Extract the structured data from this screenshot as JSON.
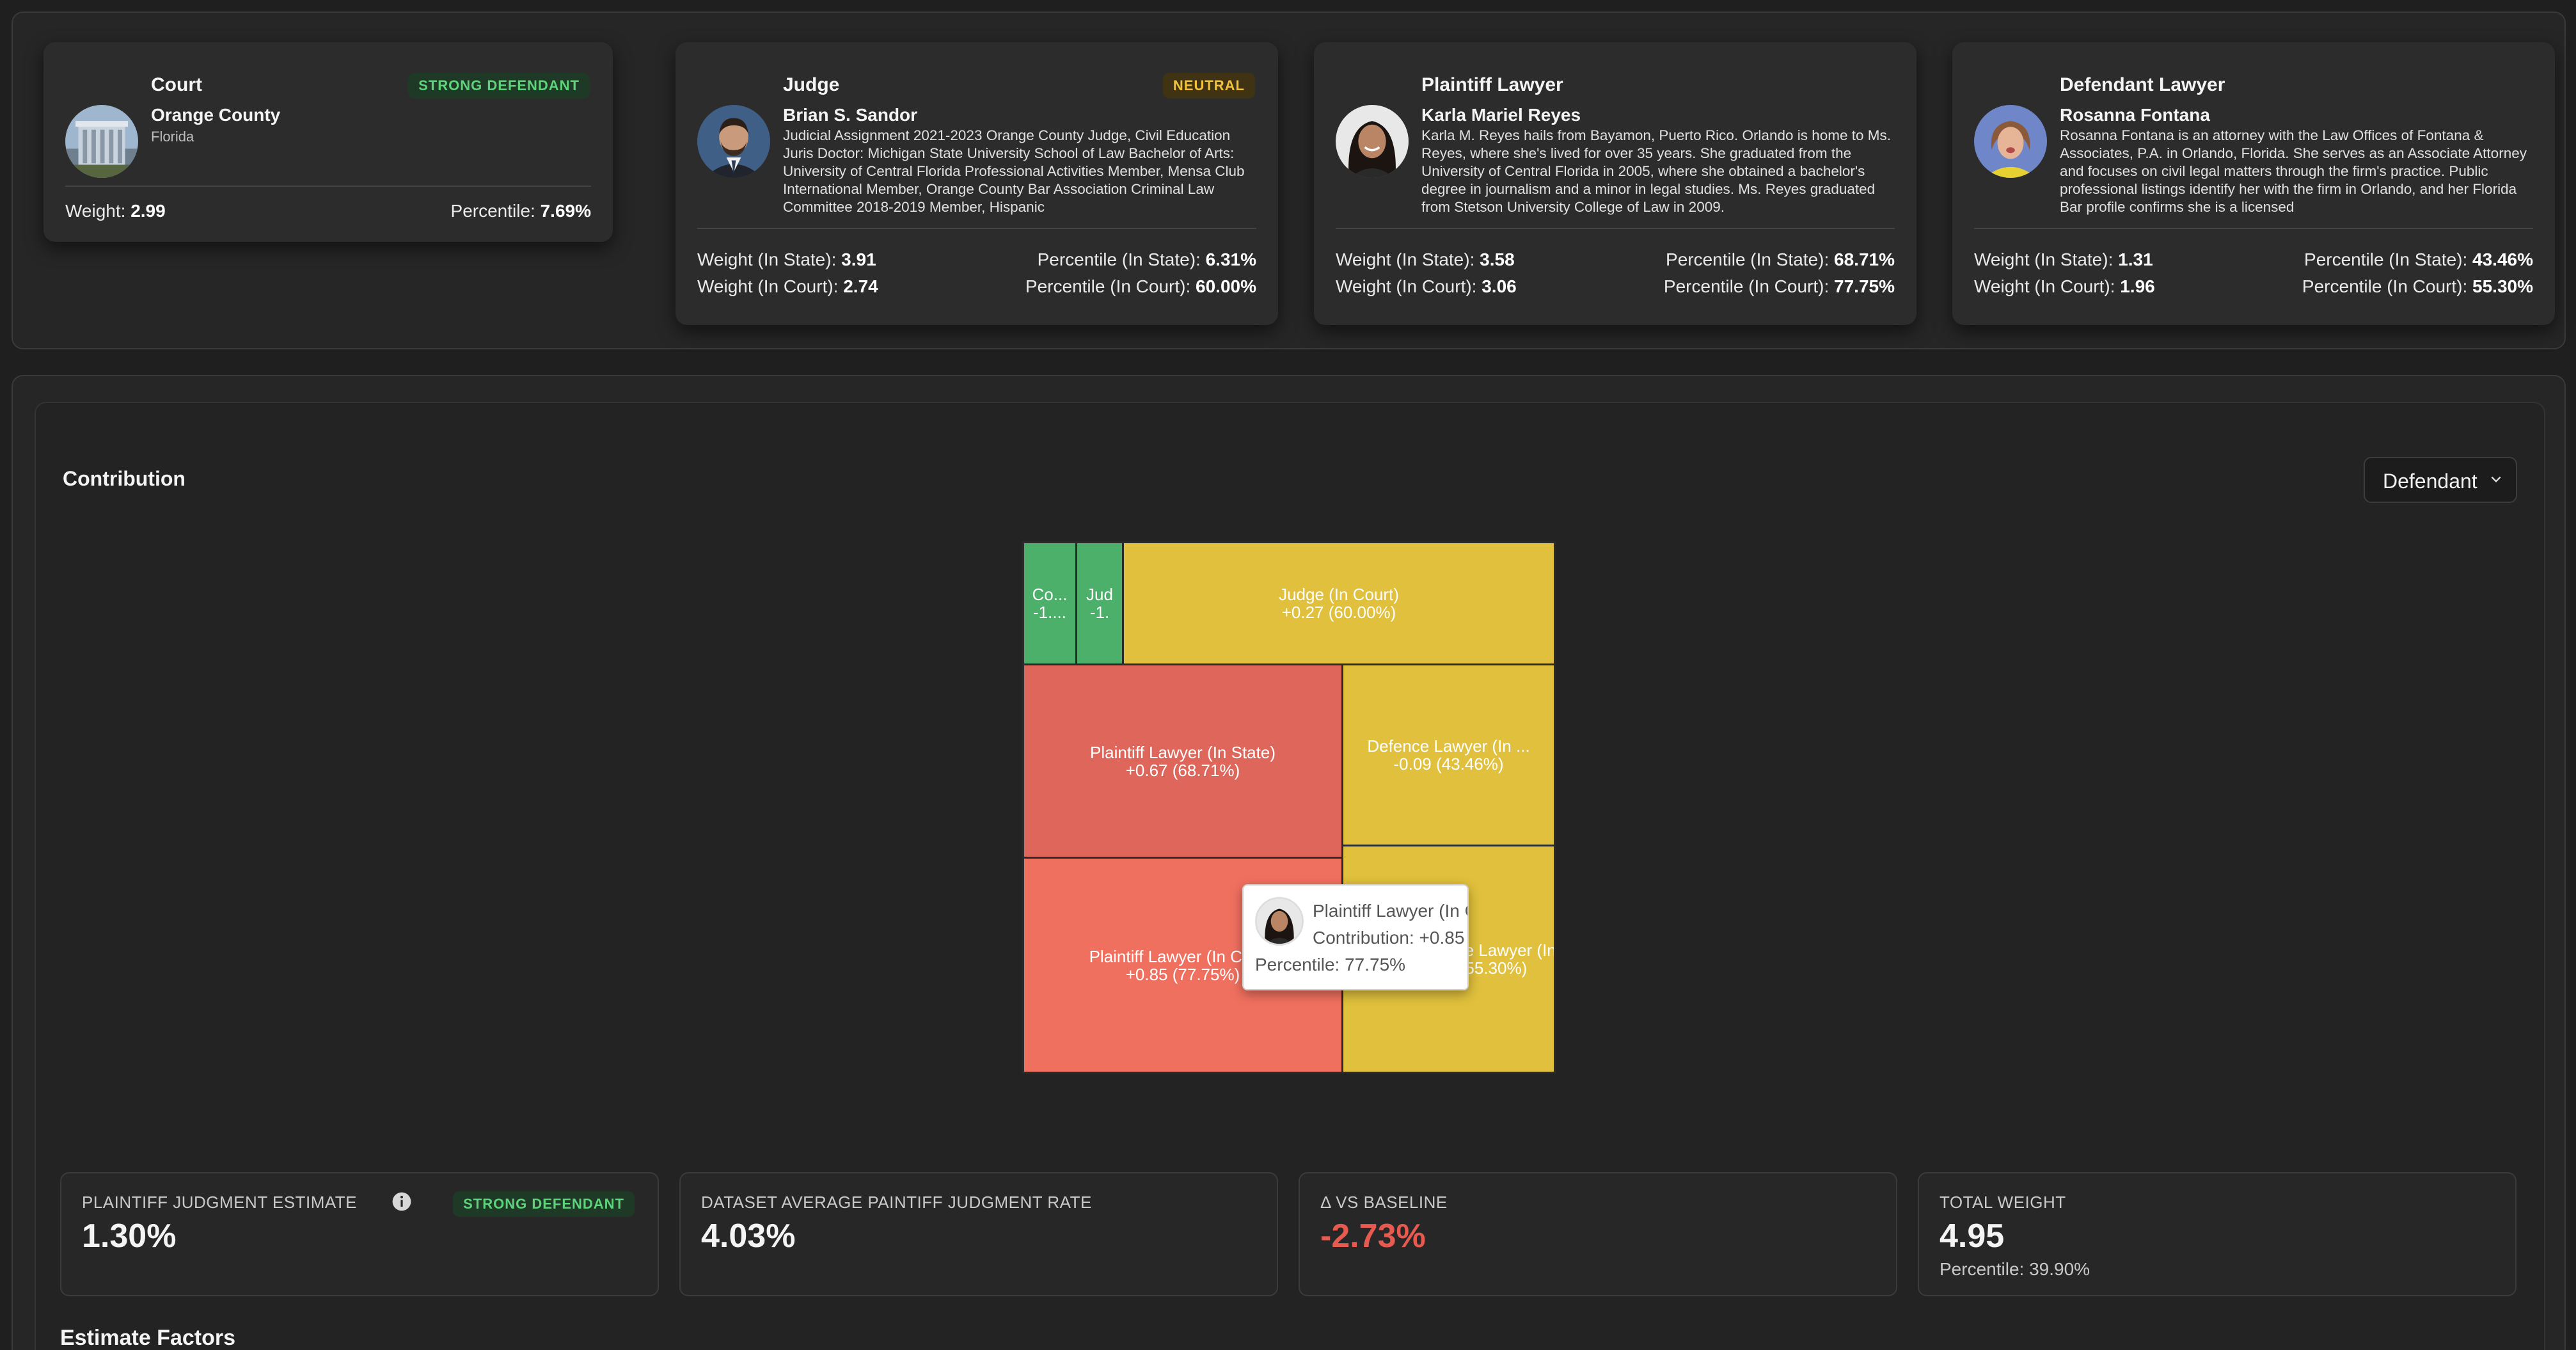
{
  "court": {
    "title": "Court",
    "badge": "STRONG DEFENDANT",
    "name": "Orange County",
    "state": "Florida",
    "weight_label": "Weight:",
    "weight": "2.99",
    "percentile_label": "Percentile:",
    "percentile": "7.69%"
  },
  "judge": {
    "title": "Judge",
    "badge": "NEUTRAL",
    "name": "Brian S. Sandor",
    "bio": "Judicial Assignment 2021-2023 Orange County Judge, Civil Education Juris Doctor: Michigan State University School of Law Bachelor of Arts: University of Central Florida Professional Activities Member, Mensa Club International Member, Orange County Bar Association Criminal Law Committee 2018-2019 Member, Hispanic",
    "weight_state_label": "Weight (In State):",
    "weight_state": "3.91",
    "weight_court_label": "Weight (In Court):",
    "weight_court": "2.74",
    "pct_state_label": "Percentile (In State):",
    "pct_state": "6.31%",
    "pct_court_label": "Percentile (In Court):",
    "pct_court": "60.00%"
  },
  "plaintiff_lawyer": {
    "title": "Plaintiff Lawyer",
    "name": "Karla Mariel Reyes",
    "bio": "Karla M. Reyes hails from Bayamon, Puerto Rico. Orlando is home to Ms. Reyes, where she's lived for over 35 years. She graduated from the University of Central Florida in 2005, where she obtained a bachelor's degree in journalism and a minor in legal studies. Ms. Reyes graduated from Stetson University College of Law in 2009.",
    "weight_state_label": "Weight (In State):",
    "weight_state": "3.58",
    "weight_court_label": "Weight (In Court):",
    "weight_court": "3.06",
    "pct_state_label": "Percentile (In State):",
    "pct_state": "68.71%",
    "pct_court_label": "Percentile (In Court):",
    "pct_court": "77.75%"
  },
  "defendant_lawyer": {
    "title": "Defendant Lawyer",
    "name": "Rosanna Fontana",
    "bio": "Rosanna Fontana is an attorney with the Law Offices of Fontana & Associates, P.A. in Orlando, Florida. She serves as an Associate Attorney and focuses on civil legal matters through the firm's practice. Public professional listings identify her with the firm in Orlando, and her Florida Bar profile confirms she is a licensed",
    "weight_state_label": "Weight (In State):",
    "weight_state": "1.31",
    "weight_court_label": "Weight (In Court):",
    "weight_court": "1.96",
    "pct_state_label": "Percentile (In State):",
    "pct_state": "43.46%",
    "pct_court_label": "Percentile (In Court):",
    "pct_court": "55.30%"
  },
  "contribution": {
    "title": "Contribution",
    "dropdown_value": "Defendant",
    "tiles": [
      {
        "line1": "Co...",
        "line2": "-1...."
      },
      {
        "line1": "Jud",
        "line2": "-1."
      },
      {
        "line1": "Judge (In Court)",
        "line2": "+0.27 (60.00%)"
      },
      {
        "line1": "Plaintiff Lawyer (In State)",
        "line2": "+0.67 (68.71%)"
      },
      {
        "line1": "Defence Lawyer (In ...",
        "line2": "-0.09 (43.46%)"
      },
      {
        "line1": "Plaintiff Lawyer (In Court)",
        "line2": "+0.85 (77.75%)"
      },
      {
        "line1": "Defence Lawyer (In ...",
        "line2": "(55.30%)"
      }
    ],
    "tooltip": {
      "name": "Plaintiff Lawyer (In Court)",
      "contribution": "Contribution: +0.85",
      "percentile": "Percentile: 77.75%"
    }
  },
  "kpis": {
    "estimate": {
      "label": "PLAINTIFF JUDGMENT ESTIMATE",
      "value": "1.30%",
      "badge": "STRONG DEFENDANT"
    },
    "average": {
      "label": "DATASET AVERAGE PAINTIFF JUDGMENT RATE",
      "value": "4.03%"
    },
    "baseline": {
      "label": "Δ VS BASELINE",
      "value": "-2.73%"
    },
    "total": {
      "label": "TOTAL WEIGHT",
      "value": "4.95",
      "note": "Percentile: 39.90%"
    }
  },
  "estimate_factors_title": "Estimate Factors",
  "colors": {
    "green": "#4caf6a",
    "yellow": "#e0c03c",
    "red": "#df665a",
    "red_light": "#f0705f",
    "negative": "#e65a4f"
  }
}
